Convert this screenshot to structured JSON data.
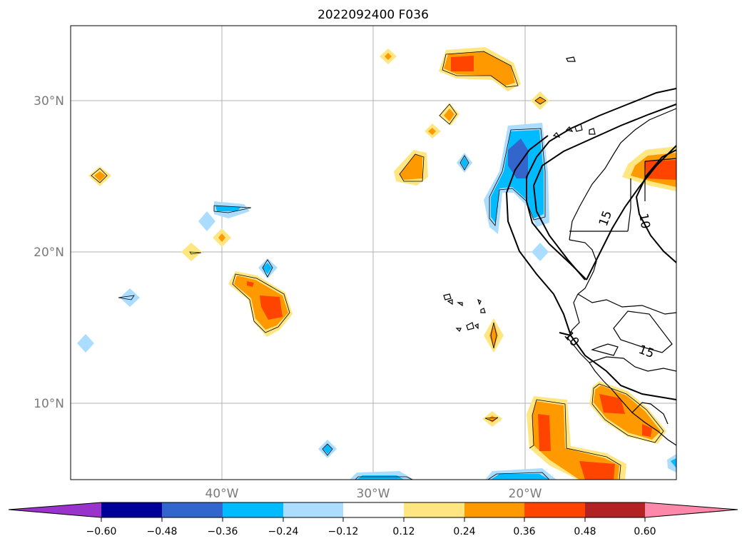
{
  "title": "2022092400 F036",
  "map": {
    "lon_labels": [
      "40°W",
      "30°W",
      "20°W"
    ],
    "lat_labels": [
      "30°N",
      "20°N",
      "10°N"
    ],
    "contour_labels": [
      "15",
      "10",
      "10",
      "15"
    ]
  },
  "colorbar": {
    "ticks": [
      "−0.60",
      "−0.48",
      "−0.36",
      "−0.24",
      "−0.12",
      "0.12",
      "0.24",
      "0.36",
      "0.48",
      "0.60"
    ],
    "colors": {
      "under": "#9933cc",
      "b1": "#000099",
      "b2": "#3366cc",
      "b3": "#00bbff",
      "b4": "#aaddff",
      "b5": "#ffffff",
      "b6": "#ffe680",
      "b7": "#ff9900",
      "b8": "#ff4400",
      "b9": "#b22222",
      "over": "#ff88aa"
    }
  }
}
